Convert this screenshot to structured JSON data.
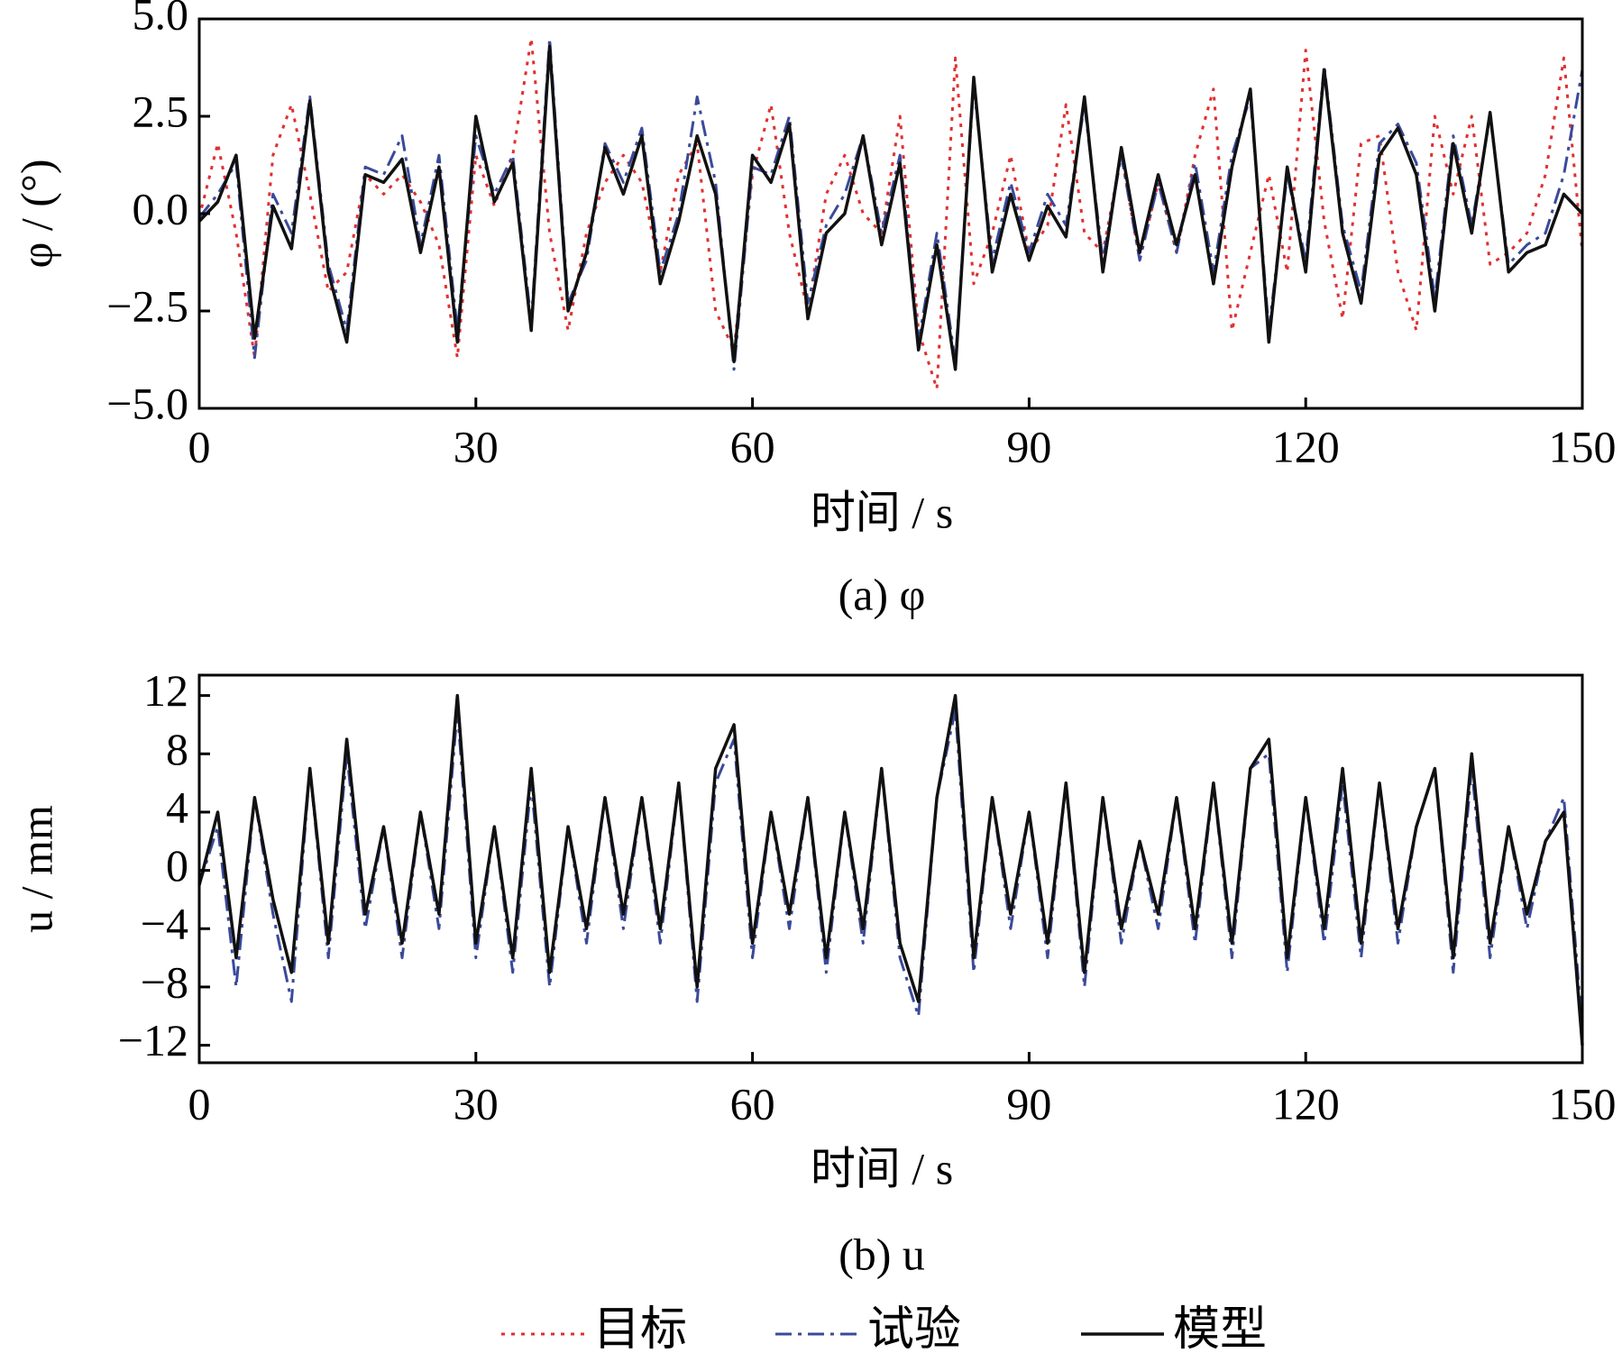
{
  "chart_data": [
    {
      "type": "line",
      "caption": "(a) φ",
      "x_label": "时间 / s",
      "y_label": "φ / (°)",
      "x": [
        0,
        2,
        4,
        6,
        8,
        10,
        12,
        14,
        16,
        18,
        20,
        22,
        24,
        26,
        28,
        30,
        32,
        34,
        36,
        38,
        40,
        42,
        44,
        46,
        48,
        50,
        52,
        54,
        56,
        58,
        60,
        62,
        64,
        66,
        68,
        70,
        72,
        74,
        76,
        78,
        80,
        82,
        84,
        86,
        88,
        90,
        92,
        94,
        96,
        98,
        100,
        102,
        104,
        106,
        108,
        110,
        112,
        114,
        116,
        118,
        120,
        122,
        124,
        126,
        128,
        130,
        132,
        134,
        136,
        138,
        140,
        142,
        144,
        146,
        148,
        150
      ],
      "series": [
        {
          "name": "目标",
          "color": "#e03030",
          "style": "dotted",
          "values": [
            -0.1,
            1.8,
            -0.5,
            -3.7,
            1.5,
            2.8,
            0.5,
            -2.0,
            -1.5,
            1.0,
            0.5,
            1.0,
            0.3,
            -0.8,
            -3.7,
            1.5,
            0.2,
            1.5,
            4.5,
            -0.5,
            -3.0,
            -0.5,
            0.8,
            1.5,
            0.8,
            -1.5,
            1.0,
            1.8,
            -2.5,
            -3.5,
            1.0,
            2.8,
            -0.5,
            -2.5,
            0.5,
            1.5,
            0.0,
            -0.5,
            2.5,
            -3.0,
            -4.5,
            4.0,
            -1.8,
            -0.5,
            1.5,
            -1.0,
            -0.3,
            2.8,
            -0.5,
            -1.0,
            1.5,
            -1.2,
            0.8,
            -1.0,
            1.5,
            3.2,
            -3.0,
            -1.0,
            1.0,
            -1.5,
            4.2,
            -0.2,
            -2.7,
            1.8,
            2.0,
            -1.5,
            -3.0,
            2.5,
            0.5,
            2.5,
            -1.3,
            -1.0,
            -0.5,
            1.0,
            4.0,
            -1.0
          ]
        },
        {
          "name": "试验",
          "color": "#3a4a9a",
          "style": "dashdot",
          "values": [
            -0.1,
            0.5,
            1.3,
            -3.7,
            0.5,
            -0.5,
            3.0,
            -1.3,
            -3.0,
            1.2,
            1.0,
            2.0,
            -0.8,
            1.5,
            -3.0,
            2.0,
            0.5,
            1.5,
            -2.8,
            4.5,
            -2.3,
            -1.2,
            1.8,
            0.8,
            2.2,
            -1.5,
            0.0,
            3.0,
            0.8,
            -4.0,
            1.2,
            1.0,
            2.5,
            -2.3,
            -0.3,
            0.5,
            2.0,
            -0.5,
            1.5,
            -3.3,
            -0.5,
            -3.8,
            3.3,
            -1.2,
            0.8,
            -1.0,
            0.5,
            -0.3,
            2.8,
            -1.2,
            1.5,
            -1.2,
            0.8,
            -1.0,
            1.3,
            -1.5,
            1.5,
            3.0,
            -3.0,
            1.0,
            -1.2,
            3.8,
            -0.3,
            -2.0,
            1.8,
            2.3,
            1.3,
            -2.2,
            2.0,
            -0.3,
            2.5,
            -1.3,
            -0.8,
            -0.5,
            1.0,
            3.7
          ]
        },
        {
          "name": "模型",
          "color": "#111111",
          "style": "solid",
          "values": [
            -0.2,
            0.3,
            1.5,
            -3.2,
            0.2,
            -0.9,
            2.9,
            -1.5,
            -3.3,
            1.0,
            0.8,
            1.4,
            -1.0,
            1.2,
            -3.3,
            2.5,
            0.3,
            1.3,
            -3.0,
            4.3,
            -2.5,
            -1.0,
            1.7,
            0.5,
            2.0,
            -1.8,
            -0.2,
            2.0,
            0.5,
            -3.8,
            1.5,
            0.8,
            2.3,
            -2.7,
            -0.5,
            0.0,
            2.0,
            -0.8,
            1.3,
            -3.5,
            -0.8,
            -4.0,
            3.5,
            -1.5,
            0.5,
            -1.2,
            0.2,
            -0.6,
            3.0,
            -1.5,
            1.7,
            -1.0,
            1.0,
            -0.8,
            1.0,
            -1.8,
            1.2,
            3.2,
            -3.3,
            1.2,
            -1.5,
            3.7,
            -0.5,
            -2.3,
            1.5,
            2.2,
            1.0,
            -2.5,
            1.8,
            -0.5,
            2.6,
            -1.5,
            -1.0,
            -0.8,
            0.5,
            0.0
          ]
        }
      ],
      "xlim": [
        0,
        150
      ],
      "xticks": [
        0,
        30,
        60,
        90,
        120,
        150
      ],
      "ylim": [
        -5,
        5
      ],
      "yticks": [
        {
          "value": -5,
          "label": "−5.0"
        },
        {
          "value": -2.5,
          "label": "−2.5"
        },
        {
          "value": 0,
          "label": "0.0"
        },
        {
          "value": 2.5,
          "label": "2.5"
        },
        {
          "value": 5,
          "label": "5.0"
        }
      ]
    },
    {
      "type": "line",
      "caption": "(b) u",
      "x_label": "时间 / s",
      "y_label": "u / mm",
      "x": [
        0,
        2,
        4,
        6,
        8,
        10,
        12,
        14,
        16,
        18,
        20,
        22,
        24,
        26,
        28,
        30,
        32,
        34,
        36,
        38,
        40,
        42,
        44,
        46,
        48,
        50,
        52,
        54,
        56,
        58,
        60,
        62,
        64,
        66,
        68,
        70,
        72,
        74,
        76,
        78,
        80,
        82,
        84,
        86,
        88,
        90,
        92,
        94,
        96,
        98,
        100,
        102,
        104,
        106,
        108,
        110,
        112,
        114,
        116,
        118,
        120,
        122,
        124,
        126,
        128,
        130,
        132,
        134,
        136,
        138,
        140,
        142,
        144,
        146,
        148,
        150
      ],
      "series": [
        {
          "color": "#3a4a9a",
          "style": "dashdot",
          "values": [
            -1,
            3,
            -8,
            5,
            -3,
            -9,
            7,
            -6,
            8,
            -4,
            3,
            -6,
            4,
            -4,
            11,
            -6,
            3,
            -7,
            6,
            -8,
            3,
            -5,
            5,
            -4,
            5,
            -5,
            6,
            -9,
            6,
            9,
            -6,
            4,
            -4,
            5,
            -7,
            4,
            -5,
            7,
            -6,
            -10,
            5,
            11,
            -7,
            5,
            -4,
            4,
            -6,
            6,
            -8,
            5,
            -5,
            2,
            -4,
            5,
            -5,
            6,
            -6,
            7,
            8,
            -7,
            5,
            -5,
            6,
            -6,
            6,
            -5,
            3,
            7,
            -7,
            7,
            -6,
            3,
            -4,
            2,
            5,
            -11
          ]
        },
        {
          "color": "#111111",
          "style": "solid",
          "values": [
            -1,
            4,
            -6,
            5,
            -2,
            -7,
            7,
            -5,
            9,
            -3,
            3,
            -5,
            4,
            -3,
            12,
            -5,
            3,
            -6,
            7,
            -7,
            3,
            -4,
            5,
            -3,
            5,
            -4,
            6,
            -8,
            7,
            10,
            -5,
            4,
            -3,
            5,
            -6,
            4,
            -4,
            7,
            -5,
            -9,
            5,
            12,
            -6,
            5,
            -3,
            4,
            -5,
            6,
            -7,
            5,
            -4,
            2,
            -3,
            5,
            -4,
            6,
            -5,
            7,
            9,
            -6,
            5,
            -4,
            7,
            -5,
            6,
            -4,
            3,
            7,
            -6,
            8,
            -5,
            3,
            -3,
            2,
            4,
            -12
          ]
        }
      ],
      "xlim": [
        0,
        150
      ],
      "xticks": [
        0,
        30,
        60,
        90,
        120,
        150
      ],
      "ylim": [
        -13.2,
        13.4
      ],
      "yticks": [
        {
          "value": -12,
          "label": "−12"
        },
        {
          "value": -8,
          "label": "−8"
        },
        {
          "value": -4,
          "label": "−4"
        },
        0,
        4,
        8,
        12
      ]
    }
  ]
}
